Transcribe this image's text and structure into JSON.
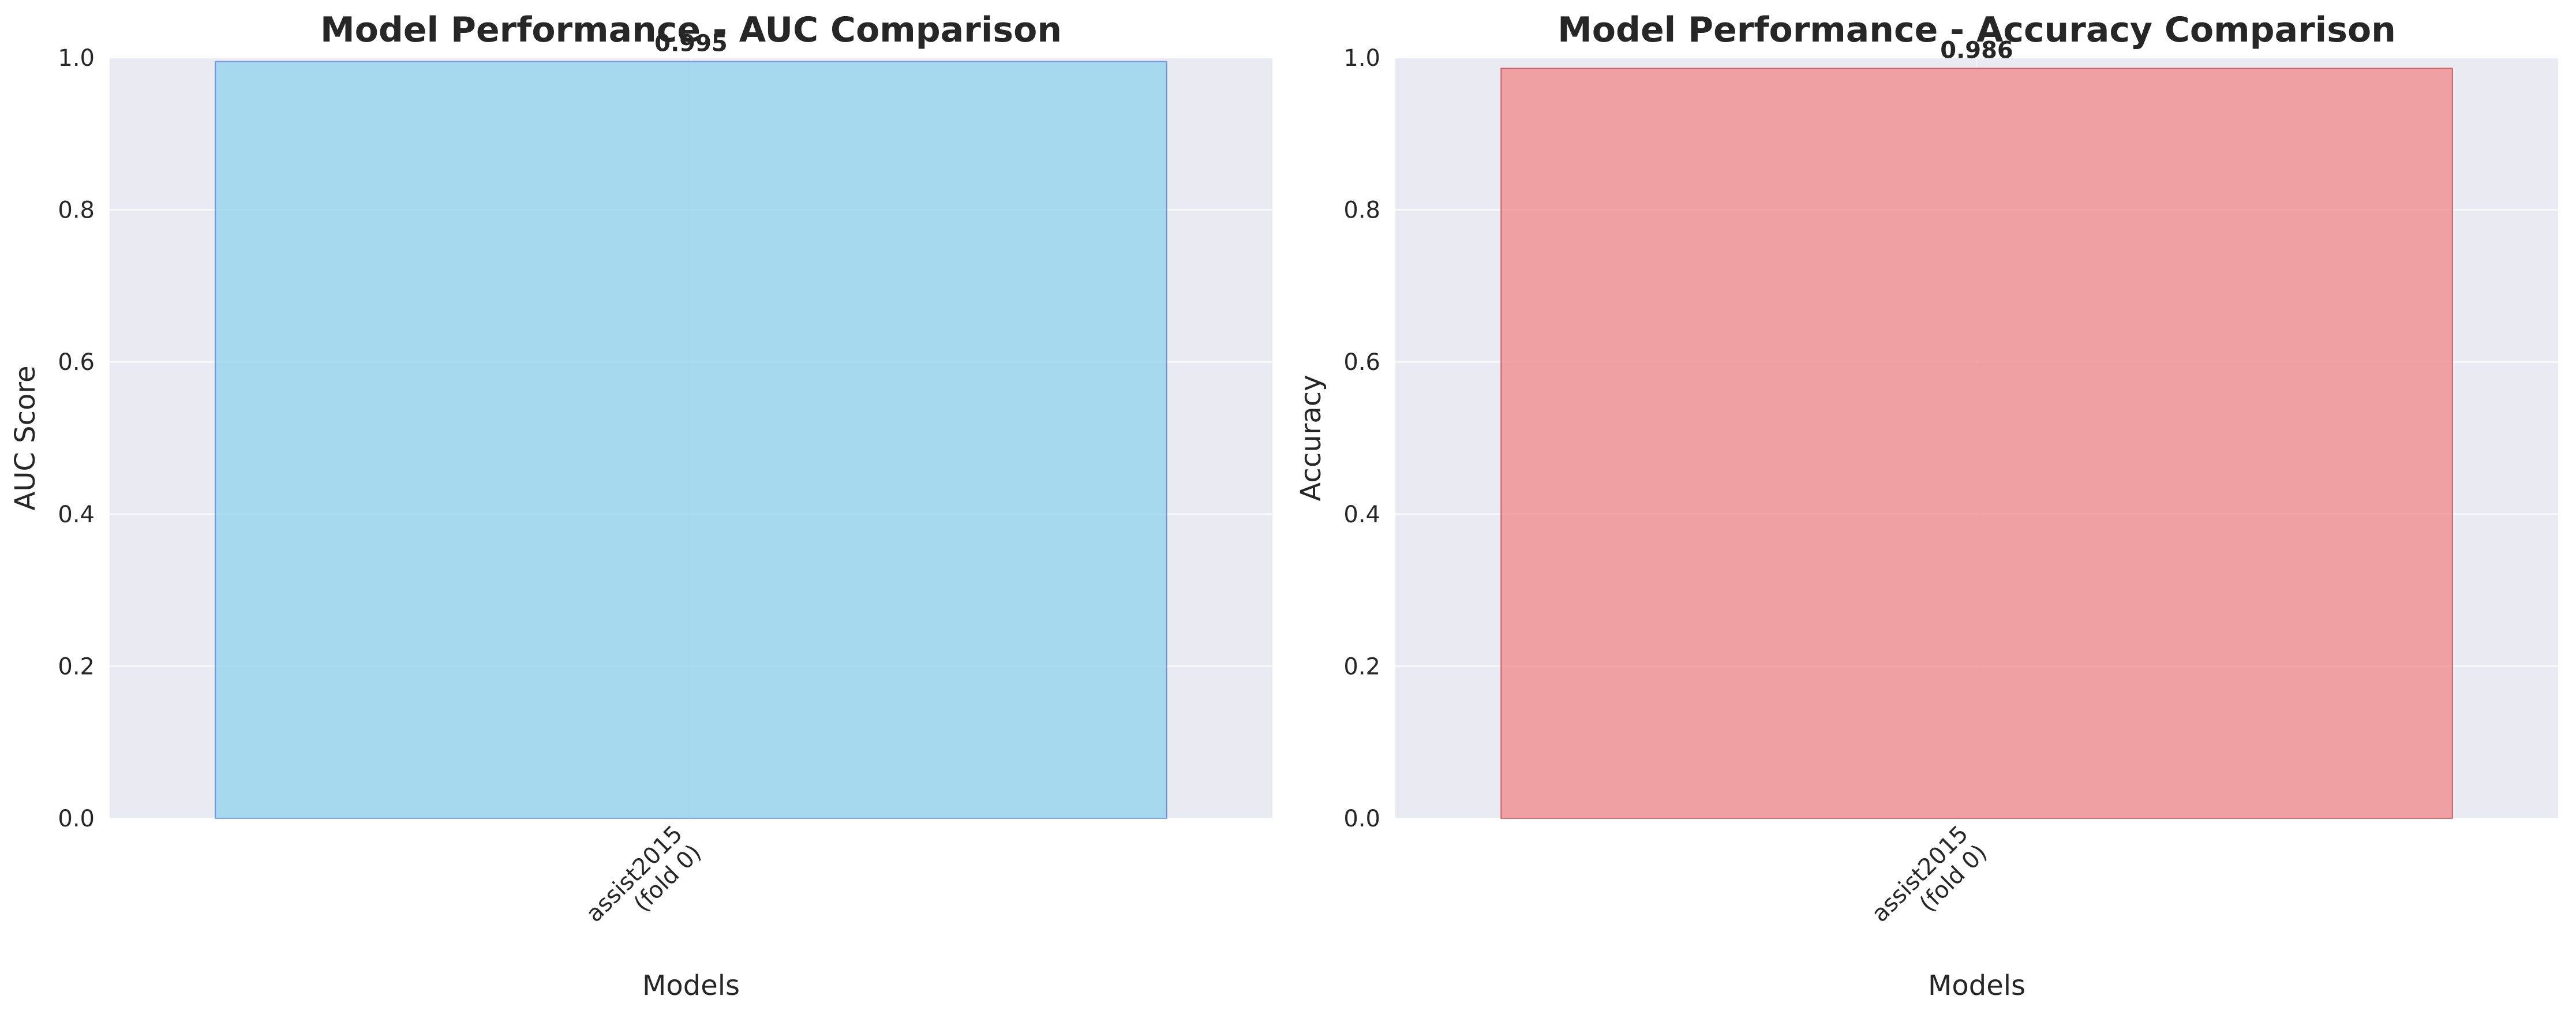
{
  "chart_data": [
    {
      "type": "bar",
      "title": "Model Performance - AUC Comparison",
      "xlabel": "Models",
      "ylabel": "AUC Score",
      "categories": [
        "assist2015\n(fold 0)"
      ],
      "values": [
        0.995
      ],
      "data_labels": [
        "0.995"
      ],
      "ylim": [
        0,
        1.0
      ],
      "yticks": [
        "0.0",
        "0.2",
        "0.4",
        "0.6",
        "0.8",
        "1.0"
      ],
      "grid": true,
      "colors": {
        "bar": "#87CEEB",
        "edge": "#4169E1",
        "background": "#EAEAF2",
        "grid": "#FFFFFF"
      }
    },
    {
      "type": "bar",
      "title": "Model Performance - Accuracy Comparison",
      "xlabel": "Models",
      "ylabel": "Accuracy",
      "categories": [
        "assist2015\n(fold 0)"
      ],
      "values": [
        0.986
      ],
      "data_labels": [
        "0.986"
      ],
      "ylim": [
        0,
        1.0
      ],
      "yticks": [
        "0.0",
        "0.2",
        "0.4",
        "0.6",
        "0.8",
        "1.0"
      ],
      "grid": true,
      "colors": {
        "bar": "#F08080",
        "edge": "#B22222",
        "background": "#EAEAF2",
        "grid": "#FFFFFF"
      }
    }
  ]
}
